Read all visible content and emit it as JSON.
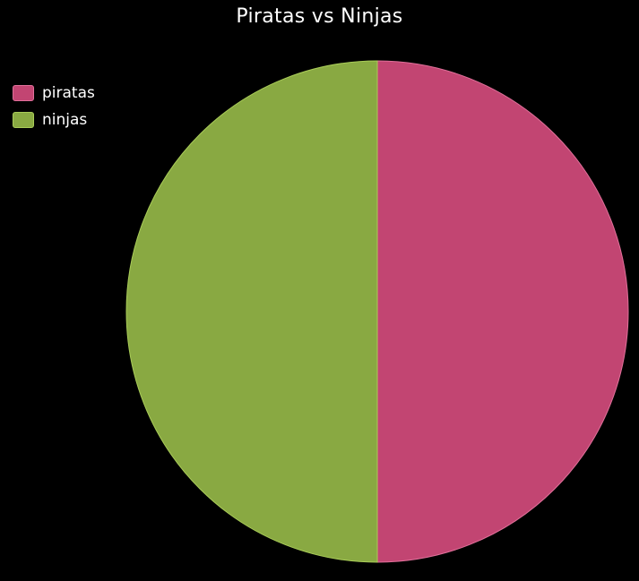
{
  "chart_data": {
    "type": "pie",
    "title": "Piratas vs Ninjas",
    "categories": [
      "piratas",
      "ninjas"
    ],
    "values": [
      50,
      50
    ],
    "colors": [
      "#c24572",
      "#89a942"
    ],
    "stroke_colors": [
      "#e0709a",
      "#a9cc58"
    ],
    "legend_position": "top-left"
  }
}
